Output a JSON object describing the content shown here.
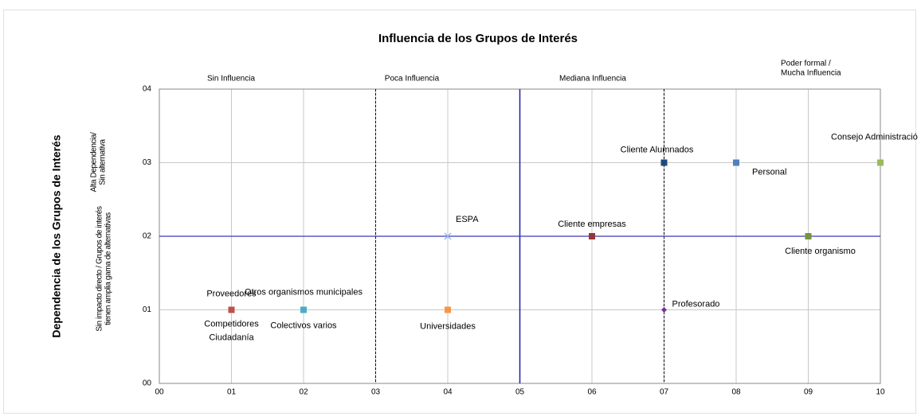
{
  "chart_data": {
    "type": "scatter",
    "title": "Influencia de los Grupos de Interés",
    "ylabel": "Dependencia de los Grupos de Interés",
    "xlim": [
      0,
      10
    ],
    "ylim": [
      0,
      4
    ],
    "xticks": [
      {
        "value": 0,
        "label": "00"
      },
      {
        "value": 1,
        "label": "01"
      },
      {
        "value": 2,
        "label": "02"
      },
      {
        "value": 3,
        "label": "03"
      },
      {
        "value": 4,
        "label": "04"
      },
      {
        "value": 5,
        "label": "05"
      },
      {
        "value": 6,
        "label": "06"
      },
      {
        "value": 7,
        "label": "07"
      },
      {
        "value": 8,
        "label": "08"
      },
      {
        "value": 9,
        "label": "09"
      },
      10
    ],
    "yticks": [
      {
        "value": 0,
        "label": "00"
      },
      {
        "value": 1,
        "label": "01"
      },
      {
        "value": 2,
        "label": "02"
      },
      {
        "value": 3,
        "label": "03"
      },
      {
        "value": 4,
        "label": "04"
      }
    ],
    "grid": true,
    "x_regions": [
      [
        "Sin Influencia"
      ],
      [
        "Poca Influencia"
      ],
      [
        "Mediana Influencia"
      ],
      [
        "Poder formal /",
        "Mucha Influencia"
      ]
    ],
    "y_regions": [
      [
        "Alta Dependencia/",
        "Sin alternativa"
      ],
      [
        "Sin impacto directo / Grupos de interés",
        "tienen amplia gama de alternativas"
      ]
    ],
    "reference_lines": {
      "x_dashed": [
        3,
        7
      ],
      "x_solid": [
        5
      ],
      "y_solid": [
        2
      ]
    },
    "series": [
      {
        "name": "Proveedores",
        "color": "#c0504d",
        "marker": "square",
        "x": [
          1
        ],
        "values": [
          1
        ]
      },
      {
        "name": "Competidores",
        "color": "#c0504d",
        "marker": "square",
        "x": [
          1
        ],
        "values": [
          1
        ]
      },
      {
        "name": "Ciudadanía",
        "color": "#c0504d",
        "marker": "square",
        "x": [
          1
        ],
        "values": [
          1
        ]
      },
      {
        "name": "Otros organismos municipales",
        "color": "#4bacc6",
        "marker": "square",
        "x": [
          2
        ],
        "values": [
          1
        ]
      },
      {
        "name": "Colectivos varios",
        "color": "#4bacc6",
        "marker": "square",
        "x": [
          2
        ],
        "values": [
          1
        ]
      },
      {
        "name": "Universidades",
        "color": "#f79646",
        "marker": "square",
        "x": [
          4
        ],
        "values": [
          1
        ]
      },
      {
        "name": "ESPA",
        "color": "#9bb7e0",
        "marker": "cross",
        "x": [
          4
        ],
        "values": [
          2
        ]
      },
      {
        "name": "Cliente empresas",
        "color": "#953735",
        "marker": "square",
        "x": [
          6
        ],
        "values": [
          2
        ]
      },
      {
        "name": "Profesorado",
        "color": "#7030a0",
        "marker": "diamond",
        "x": [
          7
        ],
        "values": [
          1
        ]
      },
      {
        "name": "Cliente Alumnados",
        "color": "#1f497d",
        "marker": "square",
        "x": [
          7
        ],
        "values": [
          3
        ]
      },
      {
        "name": "Personal",
        "color": "#4f81bd",
        "marker": "square",
        "x": [
          8
        ],
        "values": [
          3
        ]
      },
      {
        "name": "Cliente organismo",
        "color": "#77933c",
        "marker": "square",
        "x": [
          9
        ],
        "values": [
          2
        ]
      },
      {
        "name": "Consejo Administració",
        "color": "#9bbb59",
        "marker": "square",
        "x": [
          10
        ],
        "values": [
          3
        ]
      }
    ]
  }
}
